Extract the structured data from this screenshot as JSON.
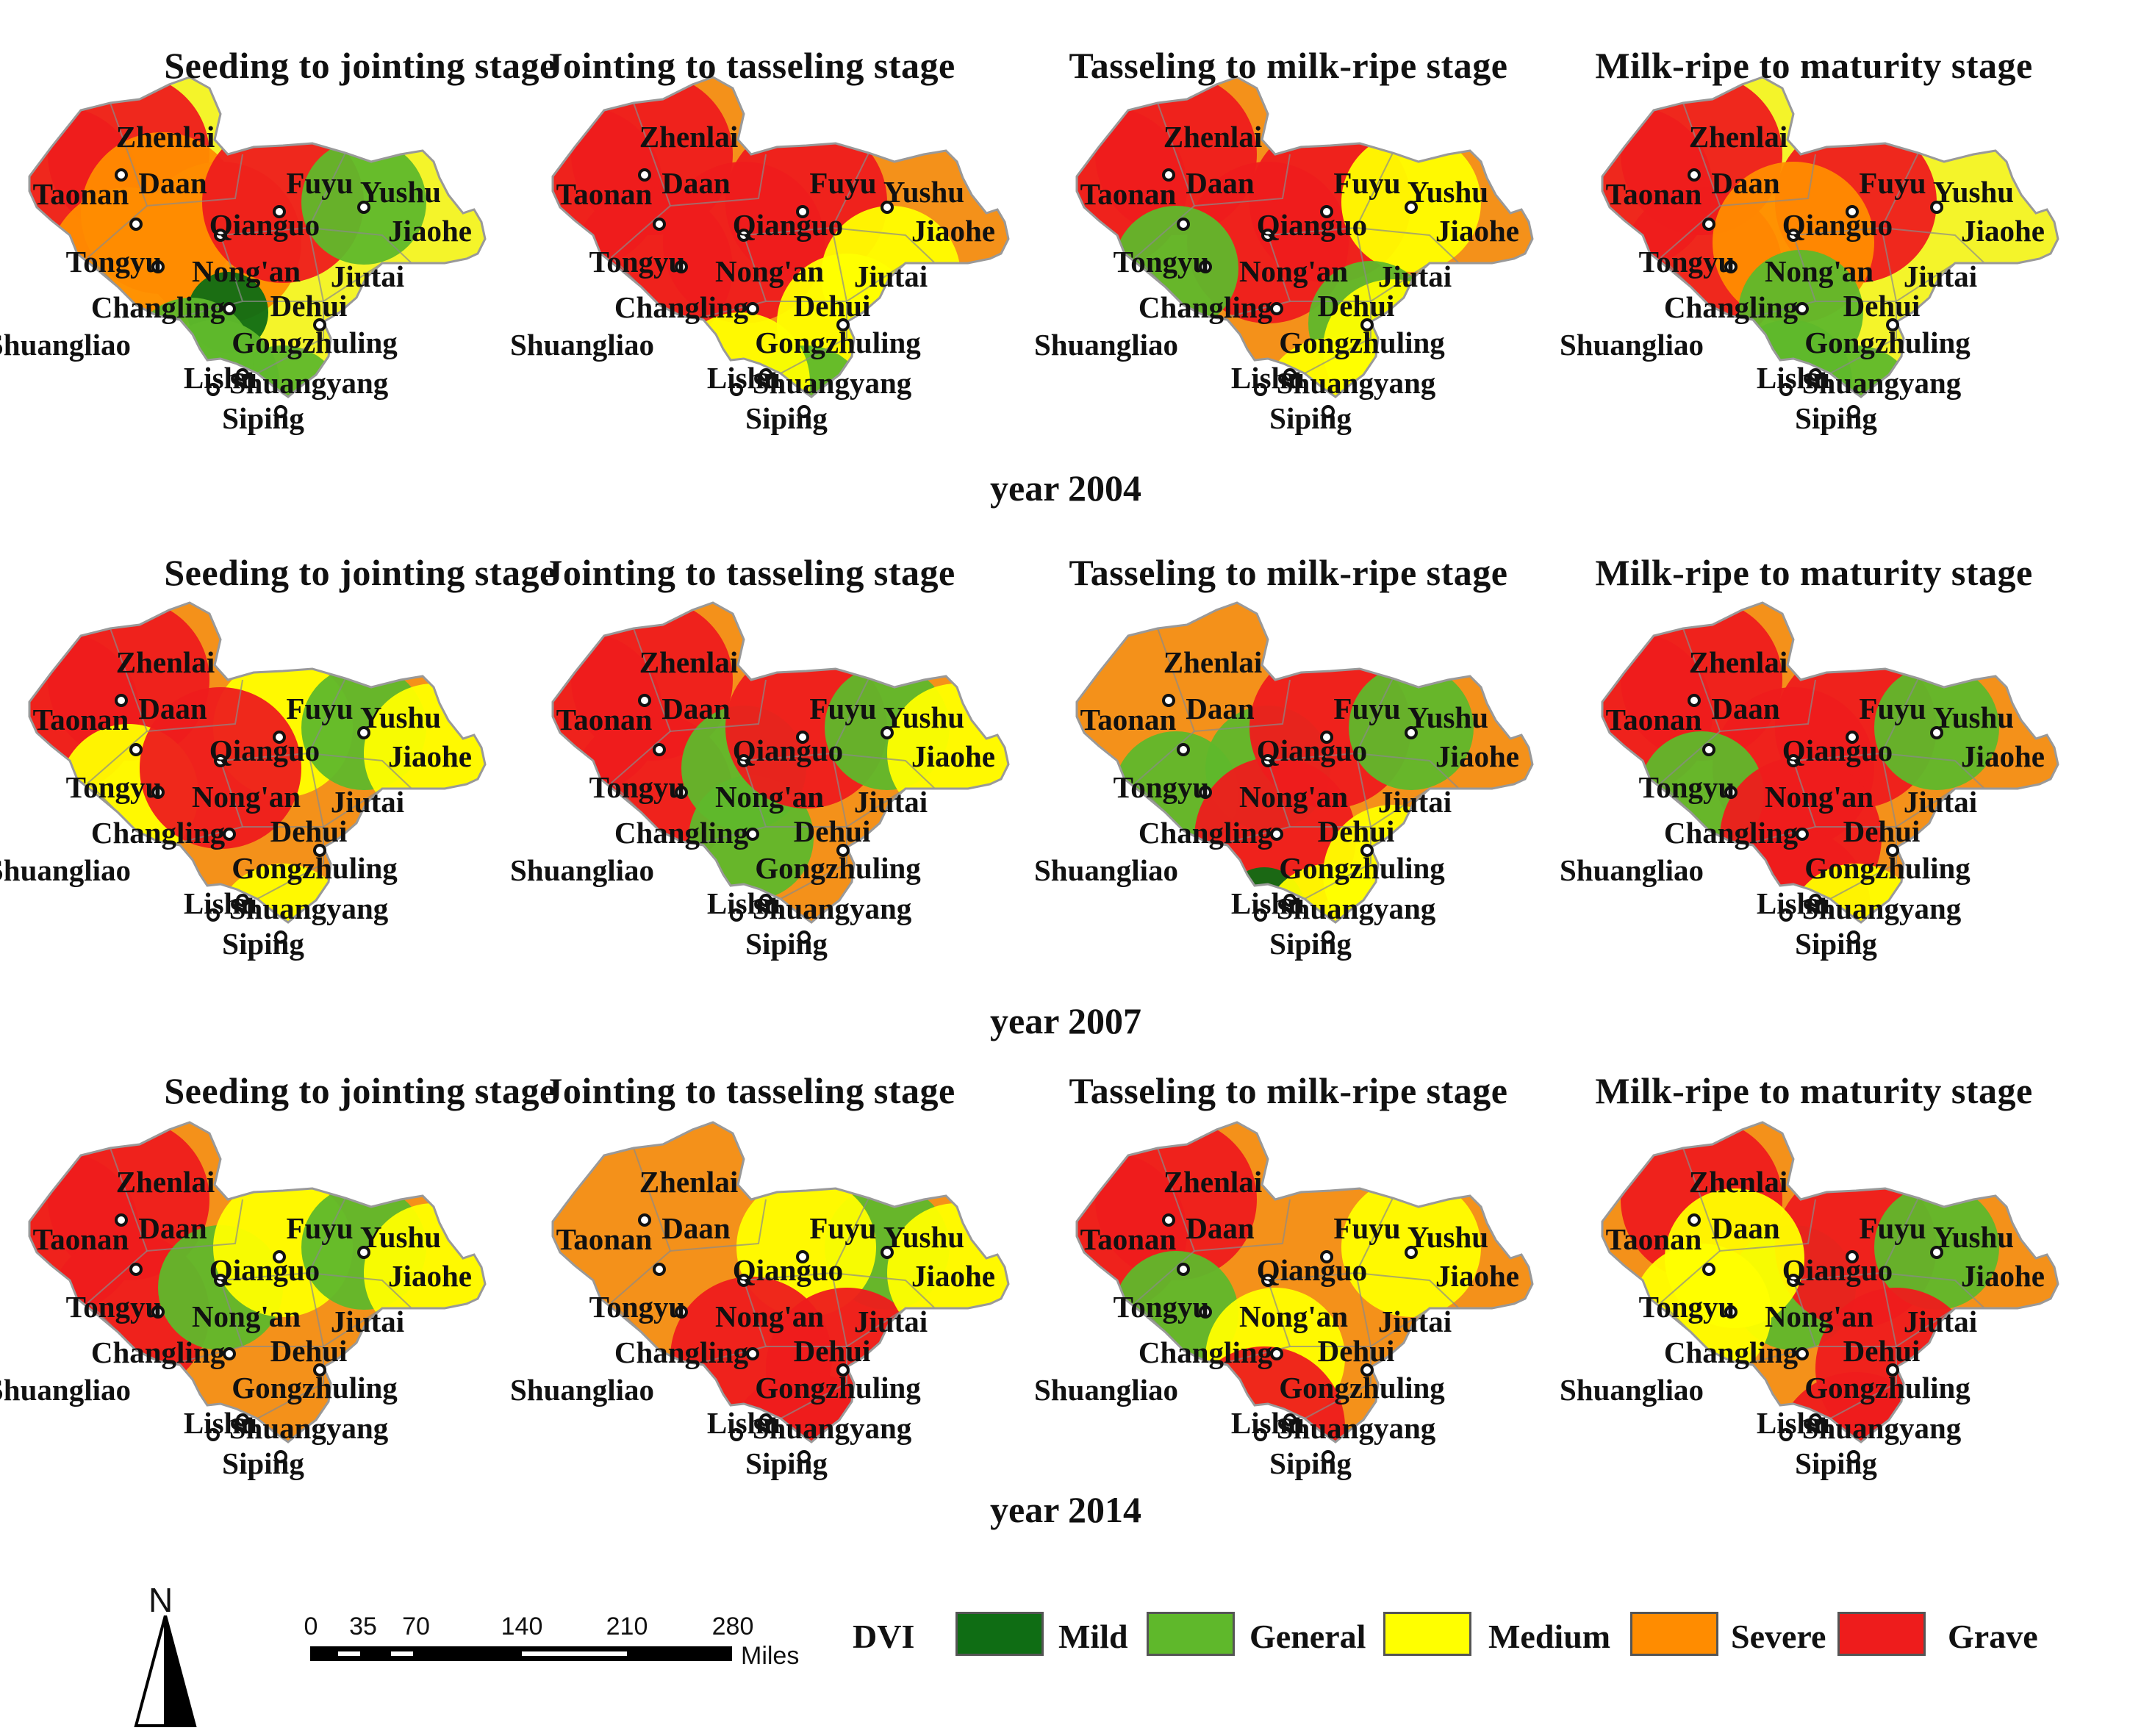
{
  "stages": [
    "Seeding to jointing stage",
    "Jointing to tasseling stage",
    "Tasseling to milk-ripe stage",
    "Milk-ripe to maturity stage"
  ],
  "years": [
    {
      "label": "year 2004",
      "panels": [
        {
          "base": "yellow",
          "hotspots": [
            {
              "city": "Zhenlai",
              "level": "Grave"
            },
            {
              "city": "Taonan",
              "level": "Grave"
            },
            {
              "city": "Daan",
              "level": "Severe"
            },
            {
              "city": "Tongyu",
              "level": "Severe"
            },
            {
              "city": "Qianguo",
              "level": "Severe"
            },
            {
              "city": "Fuyu",
              "level": "Grave"
            },
            {
              "city": "Yushu",
              "level": "General"
            },
            {
              "city": "Changling",
              "level": "Mild"
            },
            {
              "city": "Lishu",
              "level": "General"
            },
            {
              "city": "Siping",
              "level": "General"
            },
            {
              "city": "Shuangliao",
              "level": "General"
            }
          ]
        },
        {
          "base": "orange",
          "hotspots": [
            {
              "city": "Zhenlai",
              "level": "Grave"
            },
            {
              "city": "Taonan",
              "level": "Grave"
            },
            {
              "city": "Tongyu",
              "level": "Grave"
            },
            {
              "city": "Qianguo",
              "level": "Grave"
            },
            {
              "city": "Fuyu",
              "level": "Grave"
            },
            {
              "city": "Jiutai",
              "level": "Medium"
            },
            {
              "city": "Dehui",
              "level": "Medium"
            },
            {
              "city": "Siping",
              "level": "General"
            },
            {
              "city": "Lishu",
              "level": "Medium"
            }
          ]
        },
        {
          "base": "orange",
          "hotspots": [
            {
              "city": "Zhenlai",
              "level": "Grave"
            },
            {
              "city": "Taonan",
              "level": "Grave"
            },
            {
              "city": "Qianguo",
              "level": "Grave"
            },
            {
              "city": "Fuyu",
              "level": "Grave"
            },
            {
              "city": "Tongyu",
              "level": "General"
            },
            {
              "city": "Yushu",
              "level": "Medium"
            },
            {
              "city": "Dehui",
              "level": "General"
            },
            {
              "city": "Gongzhuling",
              "level": "Medium"
            },
            {
              "city": "Siping",
              "level": "Medium"
            }
          ]
        },
        {
          "base": "yellow",
          "hotspots": [
            {
              "city": "Zhenlai",
              "level": "Grave"
            },
            {
              "city": "Taonan",
              "level": "Grave"
            },
            {
              "city": "Tongyu",
              "level": "Grave"
            },
            {
              "city": "Fuyu",
              "level": "Grave"
            },
            {
              "city": "Qianguo",
              "level": "Severe"
            },
            {
              "city": "Changling",
              "level": "General"
            },
            {
              "city": "Lishu",
              "level": "General"
            },
            {
              "city": "Siping",
              "level": "General"
            }
          ]
        }
      ]
    },
    {
      "label": "year 2007",
      "panels": [
        {
          "base": "orange",
          "hotspots": [
            {
              "city": "Zhenlai",
              "level": "Grave"
            },
            {
              "city": "Taonan",
              "level": "Grave"
            },
            {
              "city": "Tongyu",
              "level": "Medium"
            },
            {
              "city": "Fuyu",
              "level": "Medium"
            },
            {
              "city": "Yushu",
              "level": "General"
            },
            {
              "city": "Qianguo",
              "level": "Grave"
            },
            {
              "city": "Jiaohe",
              "level": "Medium"
            },
            {
              "city": "Siping",
              "level": "Medium"
            }
          ]
        },
        {
          "base": "orange",
          "hotspots": [
            {
              "city": "Zhenlai",
              "level": "Grave"
            },
            {
              "city": "Taonan",
              "level": "Grave"
            },
            {
              "city": "Tongyu",
              "level": "Grave"
            },
            {
              "city": "Qianguo",
              "level": "General"
            },
            {
              "city": "Changling",
              "level": "General"
            },
            {
              "city": "Fuyu",
              "level": "Grave"
            },
            {
              "city": "Yushu",
              "level": "General"
            },
            {
              "city": "Jiaohe",
              "level": "Medium"
            }
          ]
        },
        {
          "base": "orange",
          "hotspots": [
            {
              "city": "Qianguo",
              "level": "General"
            },
            {
              "city": "Tongyu",
              "level": "General"
            },
            {
              "city": "Fuyu",
              "level": "Grave"
            },
            {
              "city": "Yushu",
              "level": "General"
            },
            {
              "city": "Changling",
              "level": "Grave"
            },
            {
              "city": "Lishu",
              "level": "Mild"
            },
            {
              "city": "Siping",
              "level": "Medium"
            },
            {
              "city": "Gongzhuling",
              "level": "Medium"
            }
          ]
        },
        {
          "base": "orange",
          "hotspots": [
            {
              "city": "Zhenlai",
              "level": "Grave"
            },
            {
              "city": "Taonan",
              "level": "Grave"
            },
            {
              "city": "Qianguo",
              "level": "Grave"
            },
            {
              "city": "Fuyu",
              "level": "Grave"
            },
            {
              "city": "Tongyu",
              "level": "General"
            },
            {
              "city": "Yushu",
              "level": "General"
            },
            {
              "city": "Changling",
              "level": "Grave"
            },
            {
              "city": "Lishu",
              "level": "Grave"
            },
            {
              "city": "Siping",
              "level": "Medium"
            }
          ]
        }
      ]
    },
    {
      "label": "year 2014",
      "panels": [
        {
          "base": "orange",
          "hotspots": [
            {
              "city": "Zhenlai",
              "level": "Grave"
            },
            {
              "city": "Taonan",
              "level": "Grave"
            },
            {
              "city": "Tongyu",
              "level": "Grave"
            },
            {
              "city": "Qianguo",
              "level": "General"
            },
            {
              "city": "Fuyu",
              "level": "Medium"
            },
            {
              "city": "Yushu",
              "level": "General"
            },
            {
              "city": "Jiaohe",
              "level": "Medium"
            }
          ]
        },
        {
          "base": "orange",
          "hotspots": [
            {
              "city": "Yushu",
              "level": "General"
            },
            {
              "city": "Fuyu",
              "level": "Medium"
            },
            {
              "city": "Changling",
              "level": "Grave"
            },
            {
              "city": "Dehui",
              "level": "Grave"
            },
            {
              "city": "Siping",
              "level": "Grave"
            },
            {
              "city": "Jiaohe",
              "level": "Medium"
            }
          ]
        },
        {
          "base": "orange",
          "hotspots": [
            {
              "city": "Zhenlai",
              "level": "Grave"
            },
            {
              "city": "Taonan",
              "level": "Grave"
            },
            {
              "city": "Tongyu",
              "level": "General"
            },
            {
              "city": "Yushu",
              "level": "Medium"
            },
            {
              "city": "Changling",
              "level": "Medium"
            },
            {
              "city": "Lishu",
              "level": "Grave"
            }
          ]
        },
        {
          "base": "orange",
          "hotspots": [
            {
              "city": "Zhenlai",
              "level": "Grave"
            },
            {
              "city": "Qianguo",
              "level": "General"
            },
            {
              "city": "Fuyu",
              "level": "Grave"
            },
            {
              "city": "Yushu",
              "level": "General"
            },
            {
              "city": "Tongyu",
              "level": "Medium"
            },
            {
              "city": "Daan",
              "level": "Medium"
            },
            {
              "city": "Dehui",
              "level": "Grave"
            },
            {
              "city": "Siping",
              "level": "Grave"
            }
          ]
        }
      ]
    }
  ],
  "cities": [
    "Zhenlai",
    "Taonan",
    "Daan",
    "Fuyu",
    "Yushu",
    "Qianguo",
    "Jiaohe",
    "Tongyu",
    "Nong'an",
    "Jiutai",
    "Changling",
    "Dehui",
    "Shuangliao",
    "Gongzhuling",
    "Lishu",
    "Shuangyang",
    "Siping"
  ],
  "colors": {
    "Mild": "#0f6d14",
    "General": "#5fb82b",
    "Medium": "#ffff00",
    "Severe": "#ff8c00",
    "Grave": "#ee1c1c",
    "yellow": "#f4f42a",
    "orange": "#f4911a"
  },
  "legend": {
    "title": "DVI",
    "items": [
      {
        "label": "Mild",
        "color": "#0f6d14"
      },
      {
        "label": "General",
        "color": "#5fb82b"
      },
      {
        "label": "Medium",
        "color": "#ffff00"
      },
      {
        "label": "Severe",
        "color": "#ff8c00"
      },
      {
        "label": "Grave",
        "color": "#ee1c1c"
      }
    ]
  },
  "north_arrow": "N",
  "scale_bar": {
    "ticks": [
      "0",
      "35",
      "70",
      "140",
      "210",
      "280"
    ],
    "unit": "Miles"
  }
}
